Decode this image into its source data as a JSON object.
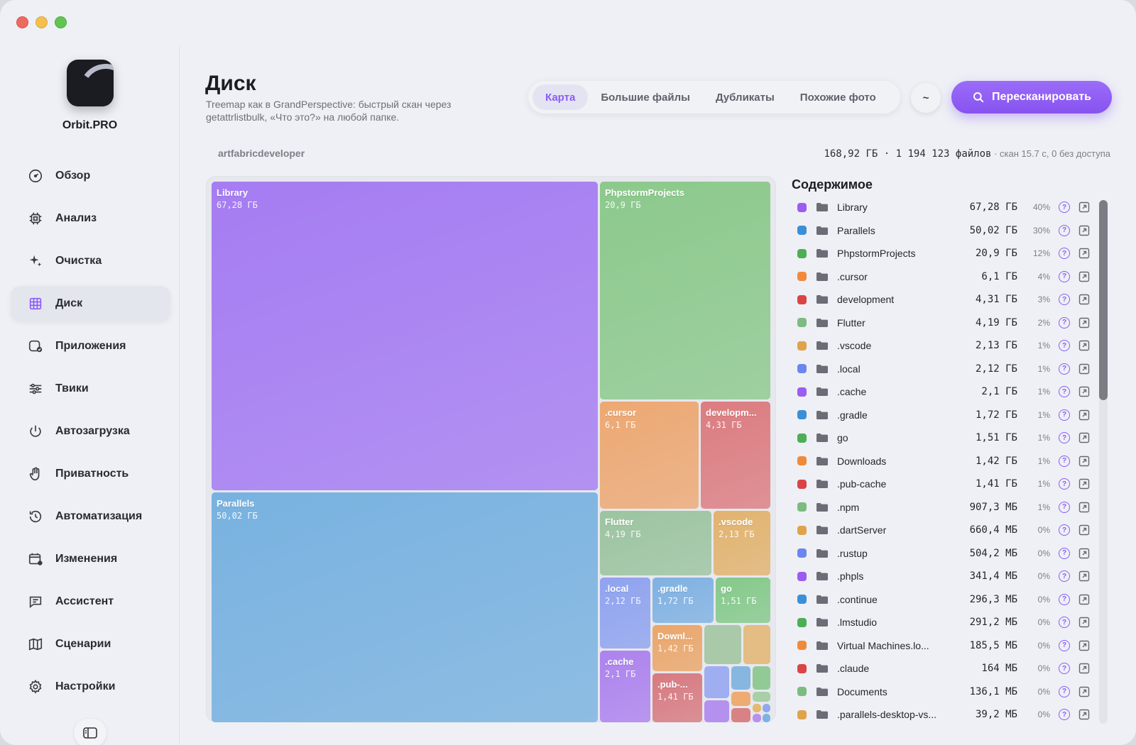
{
  "app": {
    "name": "Orbit.PRO",
    "logo_icon": "orbit-logo-icon",
    "accent": "#8b5cf6"
  },
  "sidebar": {
    "items": [
      {
        "label": "Обзор",
        "icon": "gauge-icon"
      },
      {
        "label": "Анализ",
        "icon": "cpu-icon"
      },
      {
        "label": "Очистка",
        "icon": "sparkle-icon"
      },
      {
        "label": "Диск",
        "icon": "grid-icon",
        "active": true
      },
      {
        "label": "Приложения",
        "icon": "app-check-icon"
      },
      {
        "label": "Твики",
        "icon": "sliders-icon"
      },
      {
        "label": "Автозагрузка",
        "icon": "power-icon"
      },
      {
        "label": "Приватность",
        "icon": "hand-icon"
      },
      {
        "label": "Автоматизация",
        "icon": "history-icon"
      },
      {
        "label": "Изменения",
        "icon": "calendar-icon"
      },
      {
        "label": "Ассистент",
        "icon": "chat-icon"
      },
      {
        "label": "Сценарии",
        "icon": "map-icon"
      },
      {
        "label": "Настройки",
        "icon": "gear-icon"
      }
    ],
    "toggle_icon": "sidebar-toggle-icon"
  },
  "header": {
    "title": "Диск",
    "subtitle": "Treemap как в GrandPerspective: быстрый скан через getattrlistbulk, «Что это?» на любой папке.",
    "tabs": [
      {
        "label": "Карта",
        "active": true
      },
      {
        "label": "Большие файлы"
      },
      {
        "label": "Дубликаты"
      },
      {
        "label": "Похожие фото"
      }
    ],
    "home_button": "~",
    "rescan_label": "Пересканировать"
  },
  "scan": {
    "path": "artfabricdeveloper",
    "total": "168,92 ГБ · 1 194 123 файлов",
    "details": " · скан 15.7 с, 0 без доступа"
  },
  "treemap": {
    "tiles": [
      {
        "name": "Library",
        "size": "67,28 ГБ",
        "color": "#a57cf2"
      },
      {
        "name": "Parallels",
        "size": "50,02 ГБ",
        "color": "#78b2e0"
      },
      {
        "name": "PhpstormProjects",
        "size": "20,9 ГБ",
        "color": "#8cc98c"
      },
      {
        "name": ".cursor",
        "size": "6,1 ГБ",
        "color": "#eda872"
      },
      {
        "name": "developm...",
        "size": "4,31 ГБ",
        "color": "#dc7c80"
      },
      {
        "name": "Flutter",
        "size": "4,19 ГБ",
        "color": "#9cc4a0"
      },
      {
        "name": ".vscode",
        "size": "2,13 ГБ",
        "color": "#e2b36e"
      },
      {
        "name": ".local",
        "size": "2,12 ГБ",
        "color": "#8fa3ef"
      },
      {
        "name": ".gradle",
        "size": "1,72 ГБ",
        "color": "#7fb1e2"
      },
      {
        "name": "go",
        "size": "1,51 ГБ",
        "color": "#85c98a"
      },
      {
        "name": "Downl...",
        "size": "1,42 ГБ",
        "color": "#eba66a"
      },
      {
        "name": ".cache",
        "size": "2,1 ГБ",
        "color": "#ad82ee"
      },
      {
        "name": ".pub-...",
        "size": "1,41 ГБ",
        "color": "#d77a80"
      }
    ]
  },
  "contents": {
    "title": "Содержимое",
    "rows": [
      {
        "name": "Library",
        "size": "67,28 ГБ",
        "pct": "40%",
        "color": "#9b5cf0"
      },
      {
        "name": "Parallels",
        "size": "50,02 ГБ",
        "pct": "30%",
        "color": "#3b8fd8"
      },
      {
        "name": "PhpstormProjects",
        "size": "20,9 ГБ",
        "pct": "12%",
        "color": "#4cae55"
      },
      {
        "name": ".cursor",
        "size": "6,1 ГБ",
        "pct": "4%",
        "color": "#f08a3a"
      },
      {
        "name": "development",
        "size": "4,31 ГБ",
        "pct": "3%",
        "color": "#d94545"
      },
      {
        "name": "Flutter",
        "size": "4,19 ГБ",
        "pct": "2%",
        "color": "#7dbb80"
      },
      {
        "name": ".vscode",
        "size": "2,13 ГБ",
        "pct": "1%",
        "color": "#e0a34a"
      },
      {
        "name": ".local",
        "size": "2,12 ГБ",
        "pct": "1%",
        "color": "#6b86ee"
      },
      {
        "name": ".cache",
        "size": "2,1 ГБ",
        "pct": "1%",
        "color": "#9b5cf0"
      },
      {
        "name": ".gradle",
        "size": "1,72 ГБ",
        "pct": "1%",
        "color": "#3b8fd8"
      },
      {
        "name": "go",
        "size": "1,51 ГБ",
        "pct": "1%",
        "color": "#4cae55"
      },
      {
        "name": "Downloads",
        "size": "1,42 ГБ",
        "pct": "1%",
        "color": "#f08a3a"
      },
      {
        "name": ".pub-cache",
        "size": "1,41 ГБ",
        "pct": "1%",
        "color": "#d94545"
      },
      {
        "name": ".npm",
        "size": "907,3 МБ",
        "pct": "1%",
        "color": "#7dbb80"
      },
      {
        "name": ".dartServer",
        "size": "660,4 МБ",
        "pct": "0%",
        "color": "#e0a34a"
      },
      {
        "name": ".rustup",
        "size": "504,2 МБ",
        "pct": "0%",
        "color": "#6b86ee"
      },
      {
        "name": ".phpls",
        "size": "341,4 МБ",
        "pct": "0%",
        "color": "#9b5cf0"
      },
      {
        "name": ".continue",
        "size": "296,3 МБ",
        "pct": "0%",
        "color": "#3b8fd8"
      },
      {
        "name": ".lmstudio",
        "size": "291,2 МБ",
        "pct": "0%",
        "color": "#4cae55"
      },
      {
        "name": "Virtual Machines.lo...",
        "size": "185,5 МБ",
        "pct": "0%",
        "color": "#f08a3a"
      },
      {
        "name": ".claude",
        "size": "164 МБ",
        "pct": "0%",
        "color": "#d94545"
      },
      {
        "name": "Documents",
        "size": "136,1 МБ",
        "pct": "0%",
        "color": "#7dbb80"
      },
      {
        "name": ".parallels-desktop-vs...",
        "size": "39,2 МБ",
        "pct": "0%",
        "color": "#e0a34a"
      }
    ],
    "help_glyph": "?"
  }
}
